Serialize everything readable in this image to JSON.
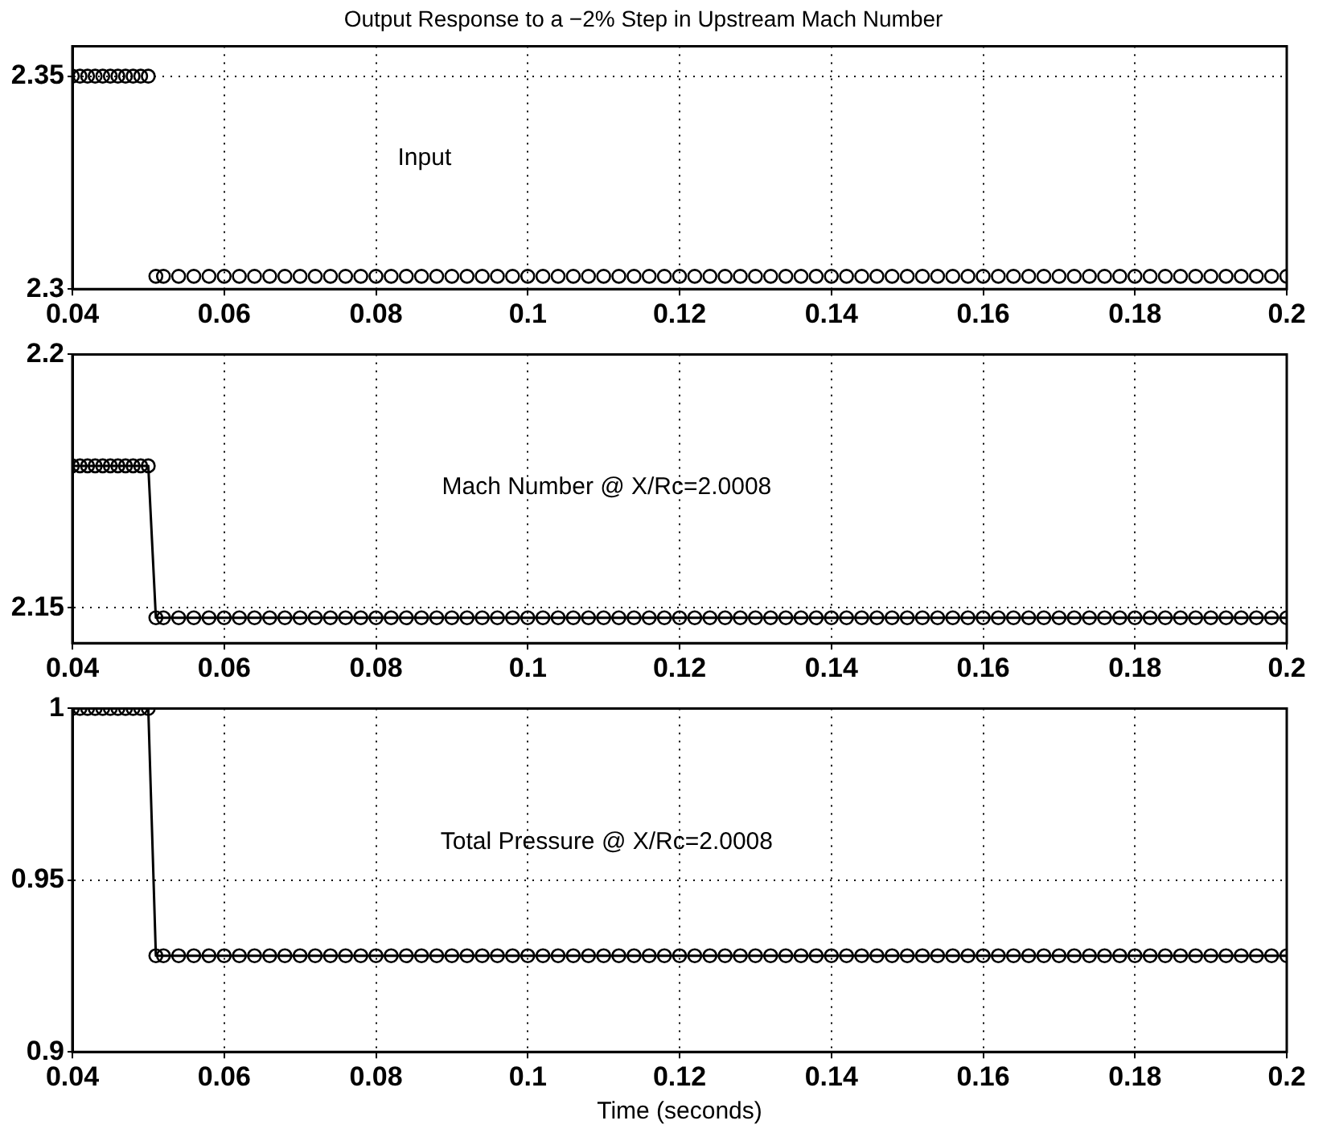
{
  "chart_data": [
    {
      "type": "scatter",
      "title": "Output Response to a −2% Step in Upstream Mach Number",
      "annotations": [
        "Input"
      ],
      "x": [
        0.04,
        0.041,
        0.042,
        0.043,
        0.044,
        0.045,
        0.046,
        0.047,
        0.048,
        0.049,
        0.05,
        0.051,
        0.052,
        0.054,
        0.056,
        0.058,
        0.06,
        0.062,
        0.064,
        0.066,
        0.068,
        0.07,
        0.072,
        0.074,
        0.076,
        0.078,
        0.08,
        0.082,
        0.084,
        0.086,
        0.088,
        0.09,
        0.092,
        0.094,
        0.096,
        0.098,
        0.1,
        0.102,
        0.104,
        0.106,
        0.108,
        0.11,
        0.112,
        0.114,
        0.116,
        0.118,
        0.12,
        0.122,
        0.124,
        0.126,
        0.128,
        0.13,
        0.132,
        0.134,
        0.136,
        0.138,
        0.14,
        0.142,
        0.144,
        0.146,
        0.148,
        0.15,
        0.152,
        0.154,
        0.156,
        0.158,
        0.16,
        0.162,
        0.164,
        0.166,
        0.168,
        0.17,
        0.172,
        0.174,
        0.176,
        0.178,
        0.18,
        0.182,
        0.184,
        0.186,
        0.188,
        0.19,
        0.192,
        0.194,
        0.196,
        0.198,
        0.2
      ],
      "series": [
        {
          "color": "#000000",
          "values": [
            2.35,
            2.35,
            2.35,
            2.35,
            2.35,
            2.35,
            2.35,
            2.35,
            2.35,
            2.35,
            2.35,
            2.303,
            2.303,
            2.303,
            2.303,
            2.303,
            2.303,
            2.303,
            2.303,
            2.303,
            2.303,
            2.303,
            2.303,
            2.303,
            2.303,
            2.303,
            2.303,
            2.303,
            2.303,
            2.303,
            2.303,
            2.303,
            2.303,
            2.303,
            2.303,
            2.303,
            2.303,
            2.303,
            2.303,
            2.303,
            2.303,
            2.303,
            2.303,
            2.303,
            2.303,
            2.303,
            2.303,
            2.303,
            2.303,
            2.303,
            2.303,
            2.303,
            2.303,
            2.303,
            2.303,
            2.303,
            2.303,
            2.303,
            2.303,
            2.303,
            2.303,
            2.303,
            2.303,
            2.303,
            2.303,
            2.303,
            2.303,
            2.303,
            2.303,
            2.303,
            2.303,
            2.303,
            2.303,
            2.303,
            2.303,
            2.303,
            2.303,
            2.303,
            2.303,
            2.303,
            2.303,
            2.303,
            2.303,
            2.303,
            2.303,
            2.303,
            2.303
          ]
        }
      ],
      "xlim": [
        0.04,
        0.2
      ],
      "xticks": [
        0.04,
        0.06,
        0.08,
        0.1,
        0.12,
        0.14,
        0.16,
        0.18,
        0.2
      ],
      "ylim": [
        2.3,
        2.357
      ],
      "yticks": [
        2.3,
        2.35
      ],
      "grid": true,
      "marker": "circle",
      "legend": false
    },
    {
      "type": "line",
      "annotations": [
        "Mach Number @ X/Rc=2.0008"
      ],
      "x": [
        0.04,
        0.041,
        0.042,
        0.043,
        0.044,
        0.045,
        0.046,
        0.047,
        0.048,
        0.049,
        0.05,
        0.051,
        0.052,
        0.054,
        0.056,
        0.058,
        0.06,
        0.062,
        0.064,
        0.066,
        0.068,
        0.07,
        0.072,
        0.074,
        0.076,
        0.078,
        0.08,
        0.082,
        0.084,
        0.086,
        0.088,
        0.09,
        0.092,
        0.094,
        0.096,
        0.098,
        0.1,
        0.102,
        0.104,
        0.106,
        0.108,
        0.11,
        0.112,
        0.114,
        0.116,
        0.118,
        0.12,
        0.122,
        0.124,
        0.126,
        0.128,
        0.13,
        0.132,
        0.134,
        0.136,
        0.138,
        0.14,
        0.142,
        0.144,
        0.146,
        0.148,
        0.15,
        0.152,
        0.154,
        0.156,
        0.158,
        0.16,
        0.162,
        0.164,
        0.166,
        0.168,
        0.17,
        0.172,
        0.174,
        0.176,
        0.178,
        0.18,
        0.182,
        0.184,
        0.186,
        0.188,
        0.19,
        0.192,
        0.194,
        0.196,
        0.198,
        0.2
      ],
      "series": [
        {
          "color": "#000000",
          "values": [
            2.178,
            2.178,
            2.178,
            2.178,
            2.178,
            2.178,
            2.178,
            2.178,
            2.178,
            2.178,
            2.178,
            2.148,
            2.148,
            2.148,
            2.148,
            2.148,
            2.148,
            2.148,
            2.148,
            2.148,
            2.148,
            2.148,
            2.148,
            2.148,
            2.148,
            2.148,
            2.148,
            2.148,
            2.148,
            2.148,
            2.148,
            2.148,
            2.148,
            2.148,
            2.148,
            2.148,
            2.148,
            2.148,
            2.148,
            2.148,
            2.148,
            2.148,
            2.148,
            2.148,
            2.148,
            2.148,
            2.148,
            2.148,
            2.148,
            2.148,
            2.148,
            2.148,
            2.148,
            2.148,
            2.148,
            2.148,
            2.148,
            2.148,
            2.148,
            2.148,
            2.148,
            2.148,
            2.148,
            2.148,
            2.148,
            2.148,
            2.148,
            2.148,
            2.148,
            2.148,
            2.148,
            2.148,
            2.148,
            2.148,
            2.148,
            2.148,
            2.148,
            2.148,
            2.148,
            2.148,
            2.148,
            2.148,
            2.148,
            2.148,
            2.148,
            2.148,
            2.148
          ]
        }
      ],
      "xlim": [
        0.04,
        0.2
      ],
      "xticks": [
        0.04,
        0.06,
        0.08,
        0.1,
        0.12,
        0.14,
        0.16,
        0.18,
        0.2
      ],
      "ylim": [
        2.143,
        2.2
      ],
      "yticks": [
        2.15,
        2.2
      ],
      "grid": true,
      "marker": "circle",
      "legend": false
    },
    {
      "type": "line",
      "xlabel": "Time (seconds)",
      "annotations": [
        "Total Pressure @ X/Rc=2.0008"
      ],
      "x": [
        0.04,
        0.041,
        0.042,
        0.043,
        0.044,
        0.045,
        0.046,
        0.047,
        0.048,
        0.049,
        0.05,
        0.051,
        0.052,
        0.054,
        0.056,
        0.058,
        0.06,
        0.062,
        0.064,
        0.066,
        0.068,
        0.07,
        0.072,
        0.074,
        0.076,
        0.078,
        0.08,
        0.082,
        0.084,
        0.086,
        0.088,
        0.09,
        0.092,
        0.094,
        0.096,
        0.098,
        0.1,
        0.102,
        0.104,
        0.106,
        0.108,
        0.11,
        0.112,
        0.114,
        0.116,
        0.118,
        0.12,
        0.122,
        0.124,
        0.126,
        0.128,
        0.13,
        0.132,
        0.134,
        0.136,
        0.138,
        0.14,
        0.142,
        0.144,
        0.146,
        0.148,
        0.15,
        0.152,
        0.154,
        0.156,
        0.158,
        0.16,
        0.162,
        0.164,
        0.166,
        0.168,
        0.17,
        0.172,
        0.174,
        0.176,
        0.178,
        0.18,
        0.182,
        0.184,
        0.186,
        0.188,
        0.19,
        0.192,
        0.194,
        0.196,
        0.198,
        0.2
      ],
      "series": [
        {
          "color": "#000000",
          "values": [
            1,
            1,
            1,
            1,
            1,
            1,
            1,
            1,
            1,
            1,
            1,
            0.928,
            0.928,
            0.928,
            0.928,
            0.928,
            0.928,
            0.928,
            0.928,
            0.928,
            0.928,
            0.928,
            0.928,
            0.928,
            0.928,
            0.928,
            0.928,
            0.928,
            0.928,
            0.928,
            0.928,
            0.928,
            0.928,
            0.928,
            0.928,
            0.928,
            0.928,
            0.928,
            0.928,
            0.928,
            0.928,
            0.928,
            0.928,
            0.928,
            0.928,
            0.928,
            0.928,
            0.928,
            0.928,
            0.928,
            0.928,
            0.928,
            0.928,
            0.928,
            0.928,
            0.928,
            0.928,
            0.928,
            0.928,
            0.928,
            0.928,
            0.928,
            0.928,
            0.928,
            0.928,
            0.928,
            0.928,
            0.928,
            0.928,
            0.928,
            0.928,
            0.928,
            0.928,
            0.928,
            0.928,
            0.928,
            0.928,
            0.928,
            0.928,
            0.928,
            0.928,
            0.928,
            0.928,
            0.928,
            0.928,
            0.928,
            0.928
          ]
        }
      ],
      "xlim": [
        0.04,
        0.2
      ],
      "xticks": [
        0.04,
        0.06,
        0.08,
        0.1,
        0.12,
        0.14,
        0.16,
        0.18,
        0.2
      ],
      "ylim": [
        0.9,
        1
      ],
      "yticks": [
        0.9,
        0.95,
        1
      ],
      "grid": true,
      "marker": "circle",
      "legend": false
    }
  ]
}
